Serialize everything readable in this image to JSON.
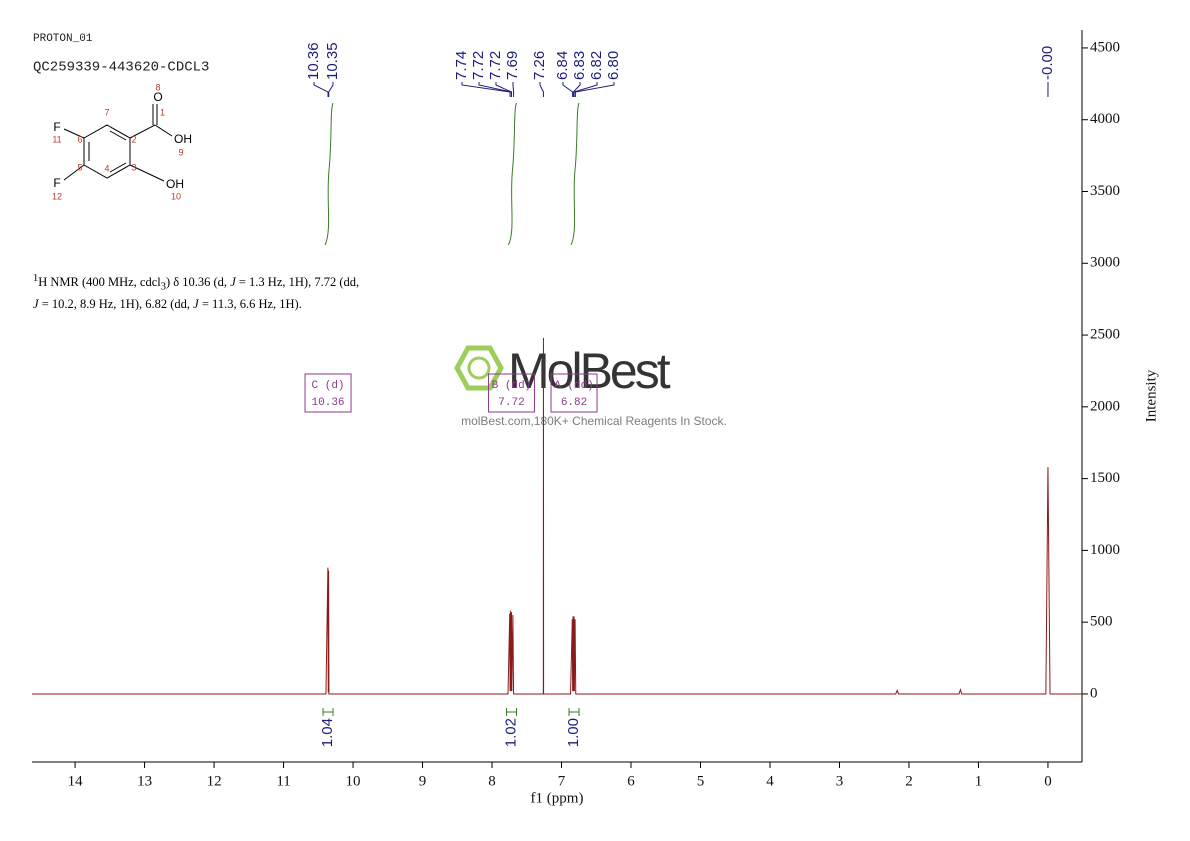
{
  "header": {
    "experiment": "PROTON_01",
    "sample": "QC259339-443620-CDCL3"
  },
  "structure": {
    "atoms": [
      "O",
      "8",
      "1",
      "7",
      "2",
      "OH",
      "9",
      "F",
      "11",
      "6",
      "5",
      "3",
      "4",
      "F",
      "12",
      "OH",
      "10"
    ]
  },
  "description": [
    "1",
    "H NMR (400 MHz, cdcl",
    "3",
    ") δ 10.36 (d, ",
    "J",
    " = 1.3 Hz, 1H), 7.72 (dd,",
    "J",
    " = 10.2, 8.9 Hz, 1H), 6.82 (dd, ",
    "J",
    " = 11.3, 6.6 Hz, 1H)."
  ],
  "watermark": {
    "brand": "MolBest",
    "tagline": "molBest.com,180K+ Chemical Reagents In Stock."
  },
  "chart_data": {
    "type": "line",
    "x_label": "f1 (ppm)",
    "y_label": "Intensity",
    "xlim": [
      14.62,
      -0.49
    ],
    "ylim": [
      -474,
      4625
    ],
    "xticks": [
      14,
      13,
      12,
      11,
      10,
      9,
      8,
      7,
      6,
      5,
      4,
      3,
      2,
      1,
      0
    ],
    "yticks": [
      0,
      500,
      1000,
      1500,
      2000,
      2500,
      3000,
      3500,
      4000,
      4500
    ],
    "series": [
      {
        "name": "spectrum",
        "color": "#8b1a1a",
        "x": [
          14.62,
          10.39,
          10.362,
          10.357,
          10.352,
          10.347,
          10.32,
          7.77,
          7.745,
          7.74,
          7.735,
          7.725,
          7.72,
          7.715,
          7.7,
          7.69,
          7.29,
          7.262,
          7.26,
          7.258,
          6.87,
          6.845,
          6.84,
          6.835,
          6.825,
          6.82,
          6.815,
          6.805,
          6.795,
          2.19,
          2.17,
          2.15,
          1.28,
          1.26,
          1.24,
          0.03,
          0.0,
          -0.03,
          -0.49
        ],
        "values": [
          0,
          0,
          880,
          10,
          860,
          0,
          0,
          0,
          560,
          20,
          580,
          20,
          570,
          20,
          550,
          0,
          0,
          0,
          2480,
          0,
          0,
          520,
          20,
          540,
          20,
          540,
          20,
          520,
          0,
          0,
          25,
          0,
          0,
          30,
          0,
          0,
          1580,
          0,
          0
        ]
      }
    ],
    "peak_labels": [
      {
        "value": 10.36,
        "label": "10.36"
      },
      {
        "value": 10.35,
        "label": "10.35"
      },
      {
        "value": 7.74,
        "label": "7.74"
      },
      {
        "value": 7.72,
        "label": "7.72"
      },
      {
        "value": 7.72,
        "label": "7.72"
      },
      {
        "value": 7.69,
        "label": "7.69"
      },
      {
        "value": 7.26,
        "label": "7.26"
      },
      {
        "value": 6.84,
        "label": "6.84"
      },
      {
        "value": 6.83,
        "label": "6.83"
      },
      {
        "value": 6.82,
        "label": "6.82"
      },
      {
        "value": 6.8,
        "label": "6.80"
      },
      {
        "value": 0,
        "label": "-0.00"
      }
    ],
    "multiplets": [
      {
        "name": "C (d)",
        "shift": 10.36,
        "integral": {
          "value": 1.04,
          "label": "1.04"
        }
      },
      {
        "name": "B (dd)",
        "shift": 7.72,
        "integral": {
          "value": 1.02,
          "label": "1.02"
        }
      },
      {
        "name": "A (dd)",
        "shift": 6.82,
        "integral": {
          "value": 1.0,
          "label": "1.00"
        }
      }
    ]
  }
}
